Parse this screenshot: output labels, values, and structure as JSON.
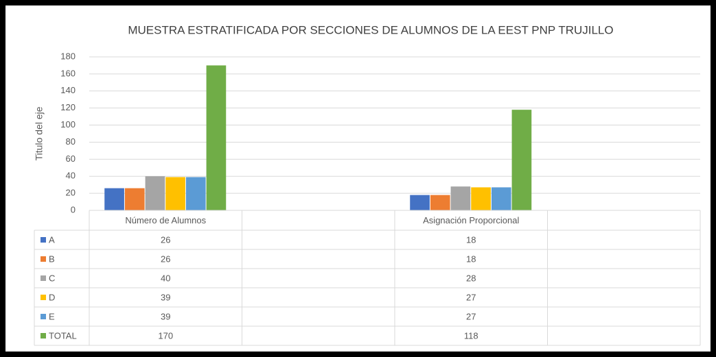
{
  "chart_data": {
    "type": "bar",
    "title": "MUESTRA ESTRATIFICADA POR SECCIONES DE ALUMNOS DE LA EEST PNP TRUJILLO",
    "y_label": "Titulo del eje",
    "categories": [
      "Número de Alumnos",
      null,
      "Asignación Proporcional",
      null
    ],
    "series": [
      {
        "name": "A",
        "color": "#4472c4",
        "values": [
          26,
          null,
          18,
          null
        ]
      },
      {
        "name": "B",
        "color": "#ed7d31",
        "values": [
          26,
          null,
          18,
          null
        ]
      },
      {
        "name": "C",
        "color": "#a5a5a5",
        "values": [
          40,
          null,
          28,
          null
        ]
      },
      {
        "name": "D",
        "color": "#ffc000",
        "values": [
          39,
          null,
          27,
          null
        ]
      },
      {
        "name": "E",
        "color": "#5b9bd5",
        "values": [
          39,
          null,
          27,
          null
        ]
      },
      {
        "name": "TOTAL",
        "color": "#70ad47",
        "values": [
          170,
          null,
          118,
          null
        ]
      }
    ],
    "ylim": [
      0,
      180
    ],
    "yticks": [
      0,
      20,
      40,
      60,
      80,
      100,
      120,
      140,
      160,
      180
    ],
    "grid": true,
    "data_table": true
  }
}
